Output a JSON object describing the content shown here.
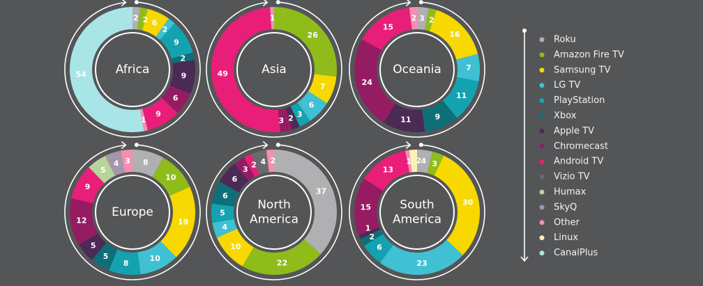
{
  "chart_data": {
    "type": "pie",
    "variant": "donut",
    "direction": "clockwise from top",
    "legend_position": "right",
    "categories": [
      "Roku",
      "Amazon Fire TV",
      "Samsung TV",
      "LG TV",
      "PlayStation",
      "Xbox",
      "Apple TV",
      "Chromecast",
      "Android TV",
      "Vizio TV",
      "Humax",
      "SkyQ",
      "Other",
      "Linux",
      "CanalPlus"
    ],
    "colors": [
      "#b0b0b3",
      "#8fbc1b",
      "#f7d800",
      "#3fc1d3",
      "#13a3b0",
      "#0e6f78",
      "#4b2a55",
      "#951c63",
      "#e91e78",
      "#6a6a6d",
      "#b9d49a",
      "#a696ab",
      "#f48fb1",
      "#fdf0b5",
      "#a9e4e6"
    ],
    "charts": [
      {
        "title": "Africa",
        "values": {
          "Roku": 2,
          "Amazon Fire TV": 2,
          "Samsung TV": 6,
          "LG TV": 2,
          "PlayStation": 9,
          "Xbox": 2,
          "Apple TV": 9,
          "Chromecast": 6,
          "Android TV": 9,
          "Other": 1,
          "CanalPlus": 54
        }
      },
      {
        "title": "Asia",
        "values": {
          "Amazon Fire TV": 26,
          "Samsung TV": 7,
          "LG TV": 6,
          "PlayStation": 3,
          "Apple TV": 2,
          "Chromecast": 3,
          "Android TV": 49,
          "Other": 1
        }
      },
      {
        "title": "Oceania",
        "values": {
          "Roku": 3,
          "Amazon Fire TV": 2,
          "Samsung TV": 16,
          "LG TV": 7,
          "PlayStation": 11,
          "Xbox": 9,
          "Apple TV": 11,
          "Chromecast": 24,
          "Android TV": 15,
          "Other": 2
        }
      },
      {
        "title": "Europe",
        "values": {
          "Roku": 8,
          "Amazon Fire TV": 10,
          "Samsung TV": 19,
          "LG TV": 10,
          "PlayStation": 8,
          "Xbox": 5,
          "Apple TV": 5,
          "Chromecast": 12,
          "Android TV": 9,
          "Humax": 5,
          "SkyQ": 4,
          "Other": 3
        }
      },
      {
        "title": "North America",
        "values": {
          "Roku": 37,
          "Amazon Fire TV": 22,
          "Samsung TV": 10,
          "LG TV": 4,
          "PlayStation": 5,
          "Xbox": 6,
          "Apple TV": 6,
          "Chromecast": 3,
          "Android TV": 2,
          "Vizio TV": 4,
          "Other": 2
        }
      },
      {
        "title": "South America",
        "values": {
          "Roku": 4,
          "Amazon Fire TV": 3,
          "Samsung TV": 30,
          "LG TV": 23,
          "PlayStation": 6,
          "Xbox": 2,
          "Apple TV": 1,
          "Chromecast": 15,
          "Android TV": 13,
          "Other": 1,
          "Linux": 2
        }
      }
    ]
  }
}
